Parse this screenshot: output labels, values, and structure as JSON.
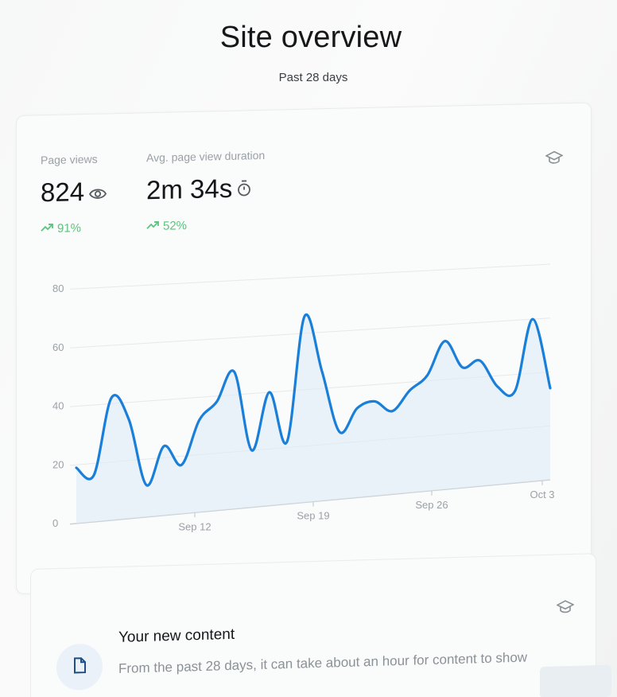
{
  "header": {
    "title": "Site overview",
    "subtitle": "Past 28 days"
  },
  "stats": {
    "page_views": {
      "label": "Page views",
      "value": "824",
      "change": "91%",
      "icon": "eye-icon"
    },
    "avg_duration": {
      "label": "Avg. page view duration",
      "value": "2m 34s",
      "change": "52%",
      "icon": "stopwatch-icon"
    }
  },
  "card_icon": "graduation-cap-icon",
  "chart_data": {
    "type": "area",
    "y_ticks": [
      "0",
      "20",
      "40",
      "60",
      "80"
    ],
    "ylim": [
      0,
      80
    ],
    "x_tick_labels": [
      "Sep 12",
      "Sep 19",
      "Sep 26",
      "Oct 3"
    ],
    "series": [
      {
        "color": "#1a7fd8",
        "values": [
          19,
          16,
          42,
          34,
          11,
          24,
          17,
          32,
          38,
          48,
          20,
          40,
          22,
          66,
          46,
          24,
          32,
          34,
          30,
          37,
          42,
          54,
          44,
          46,
          36,
          34,
          60,
          34
        ]
      }
    ],
    "grid": true
  },
  "new_content": {
    "title": "Your new content",
    "description": "From the past 28 days, it can take about an hour for content to show",
    "icon": "document-icon",
    "card_icon": "graduation-cap-icon"
  }
}
